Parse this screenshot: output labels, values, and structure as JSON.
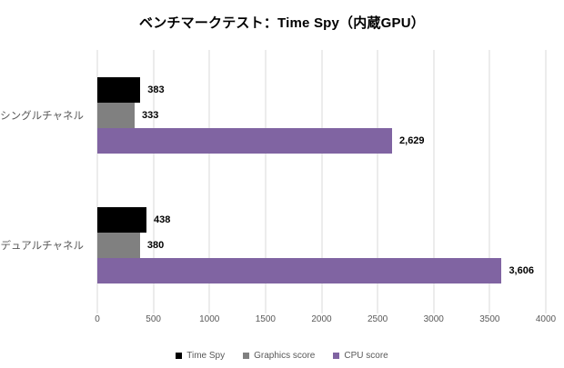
{
  "chart_data": {
    "type": "bar",
    "orientation": "horizontal",
    "title": "ベンチマークテスト：Time Spy（内蔵GPU）",
    "categories": [
      "シングルチャネル",
      "デュアルチャネル"
    ],
    "series": [
      {
        "name": "Time Spy",
        "color": "#000000",
        "values": [
          383,
          438
        ]
      },
      {
        "name": "Graphics score",
        "color": "#808080",
        "values": [
          333,
          380
        ]
      },
      {
        "name": "CPU score",
        "color": "#8064a2",
        "values": [
          2629,
          3606
        ]
      }
    ],
    "value_labels": [
      [
        "383",
        "438"
      ],
      [
        "333",
        "380"
      ],
      [
        "2,629",
        "3,606"
      ]
    ],
    "xlim": [
      0,
      4000
    ],
    "x_ticks": [
      "0",
      "500",
      "1000",
      "1500",
      "2000",
      "2500",
      "3000",
      "3500",
      "4000"
    ],
    "grid": "vertical",
    "legend_position": "bottom",
    "colors": {
      "gridline": "#d9d9d9",
      "axis_text": "#595959",
      "category_text": "#595959",
      "value_label_text": "#000000",
      "title_text": "#000000",
      "background": "#ffffff"
    }
  }
}
